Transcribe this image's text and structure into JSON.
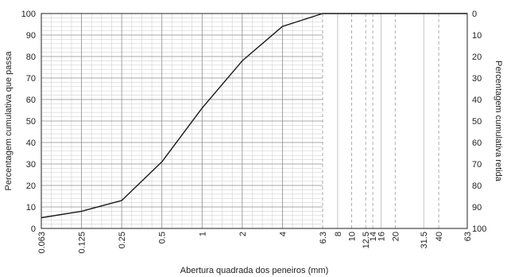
{
  "chart_data": {
    "type": "line",
    "title": "",
    "xlabel": "Abertura quadrada dos peneiros (mm)",
    "ylabel_left": "Percentagem cumulativa que passa",
    "ylabel_right": "Percentagem cumulativa retida",
    "x_scale": "log",
    "x_ticks": [
      "0.063",
      "0.125",
      "0.25",
      "0.5",
      "1",
      "2",
      "4",
      "6.3",
      "8",
      "10",
      "12.5",
      "14",
      "16",
      "20",
      "31.5",
      "40",
      "63"
    ],
    "x_tick_values": [
      0.063,
      0.125,
      0.25,
      0.5,
      1,
      2,
      4,
      6.3,
      8,
      10,
      12.5,
      14,
      16,
      20,
      31.5,
      40,
      63
    ],
    "dashed_x_ticks": [
      6.3,
      10,
      12.5,
      14,
      20,
      40
    ],
    "y_left_ticks": [
      "0",
      "10",
      "20",
      "30",
      "40",
      "50",
      "60",
      "70",
      "80",
      "90",
      "100"
    ],
    "y_right_ticks": [
      "100",
      "90",
      "80",
      "70",
      "60",
      "50",
      "40",
      "30",
      "20",
      "10",
      "0"
    ],
    "ylim": [
      0,
      100
    ],
    "grid": true,
    "series": [
      {
        "x": [
          0.063,
          0.125,
          0.25,
          0.5,
          1,
          2,
          4,
          6.3,
          8,
          10,
          12.5,
          14,
          16,
          20,
          31.5,
          40,
          63
        ],
        "values": [
          5,
          8,
          13,
          31,
          56,
          78,
          94,
          100,
          100,
          100,
          100,
          100,
          100,
          100,
          100,
          100,
          100
        ]
      }
    ]
  }
}
